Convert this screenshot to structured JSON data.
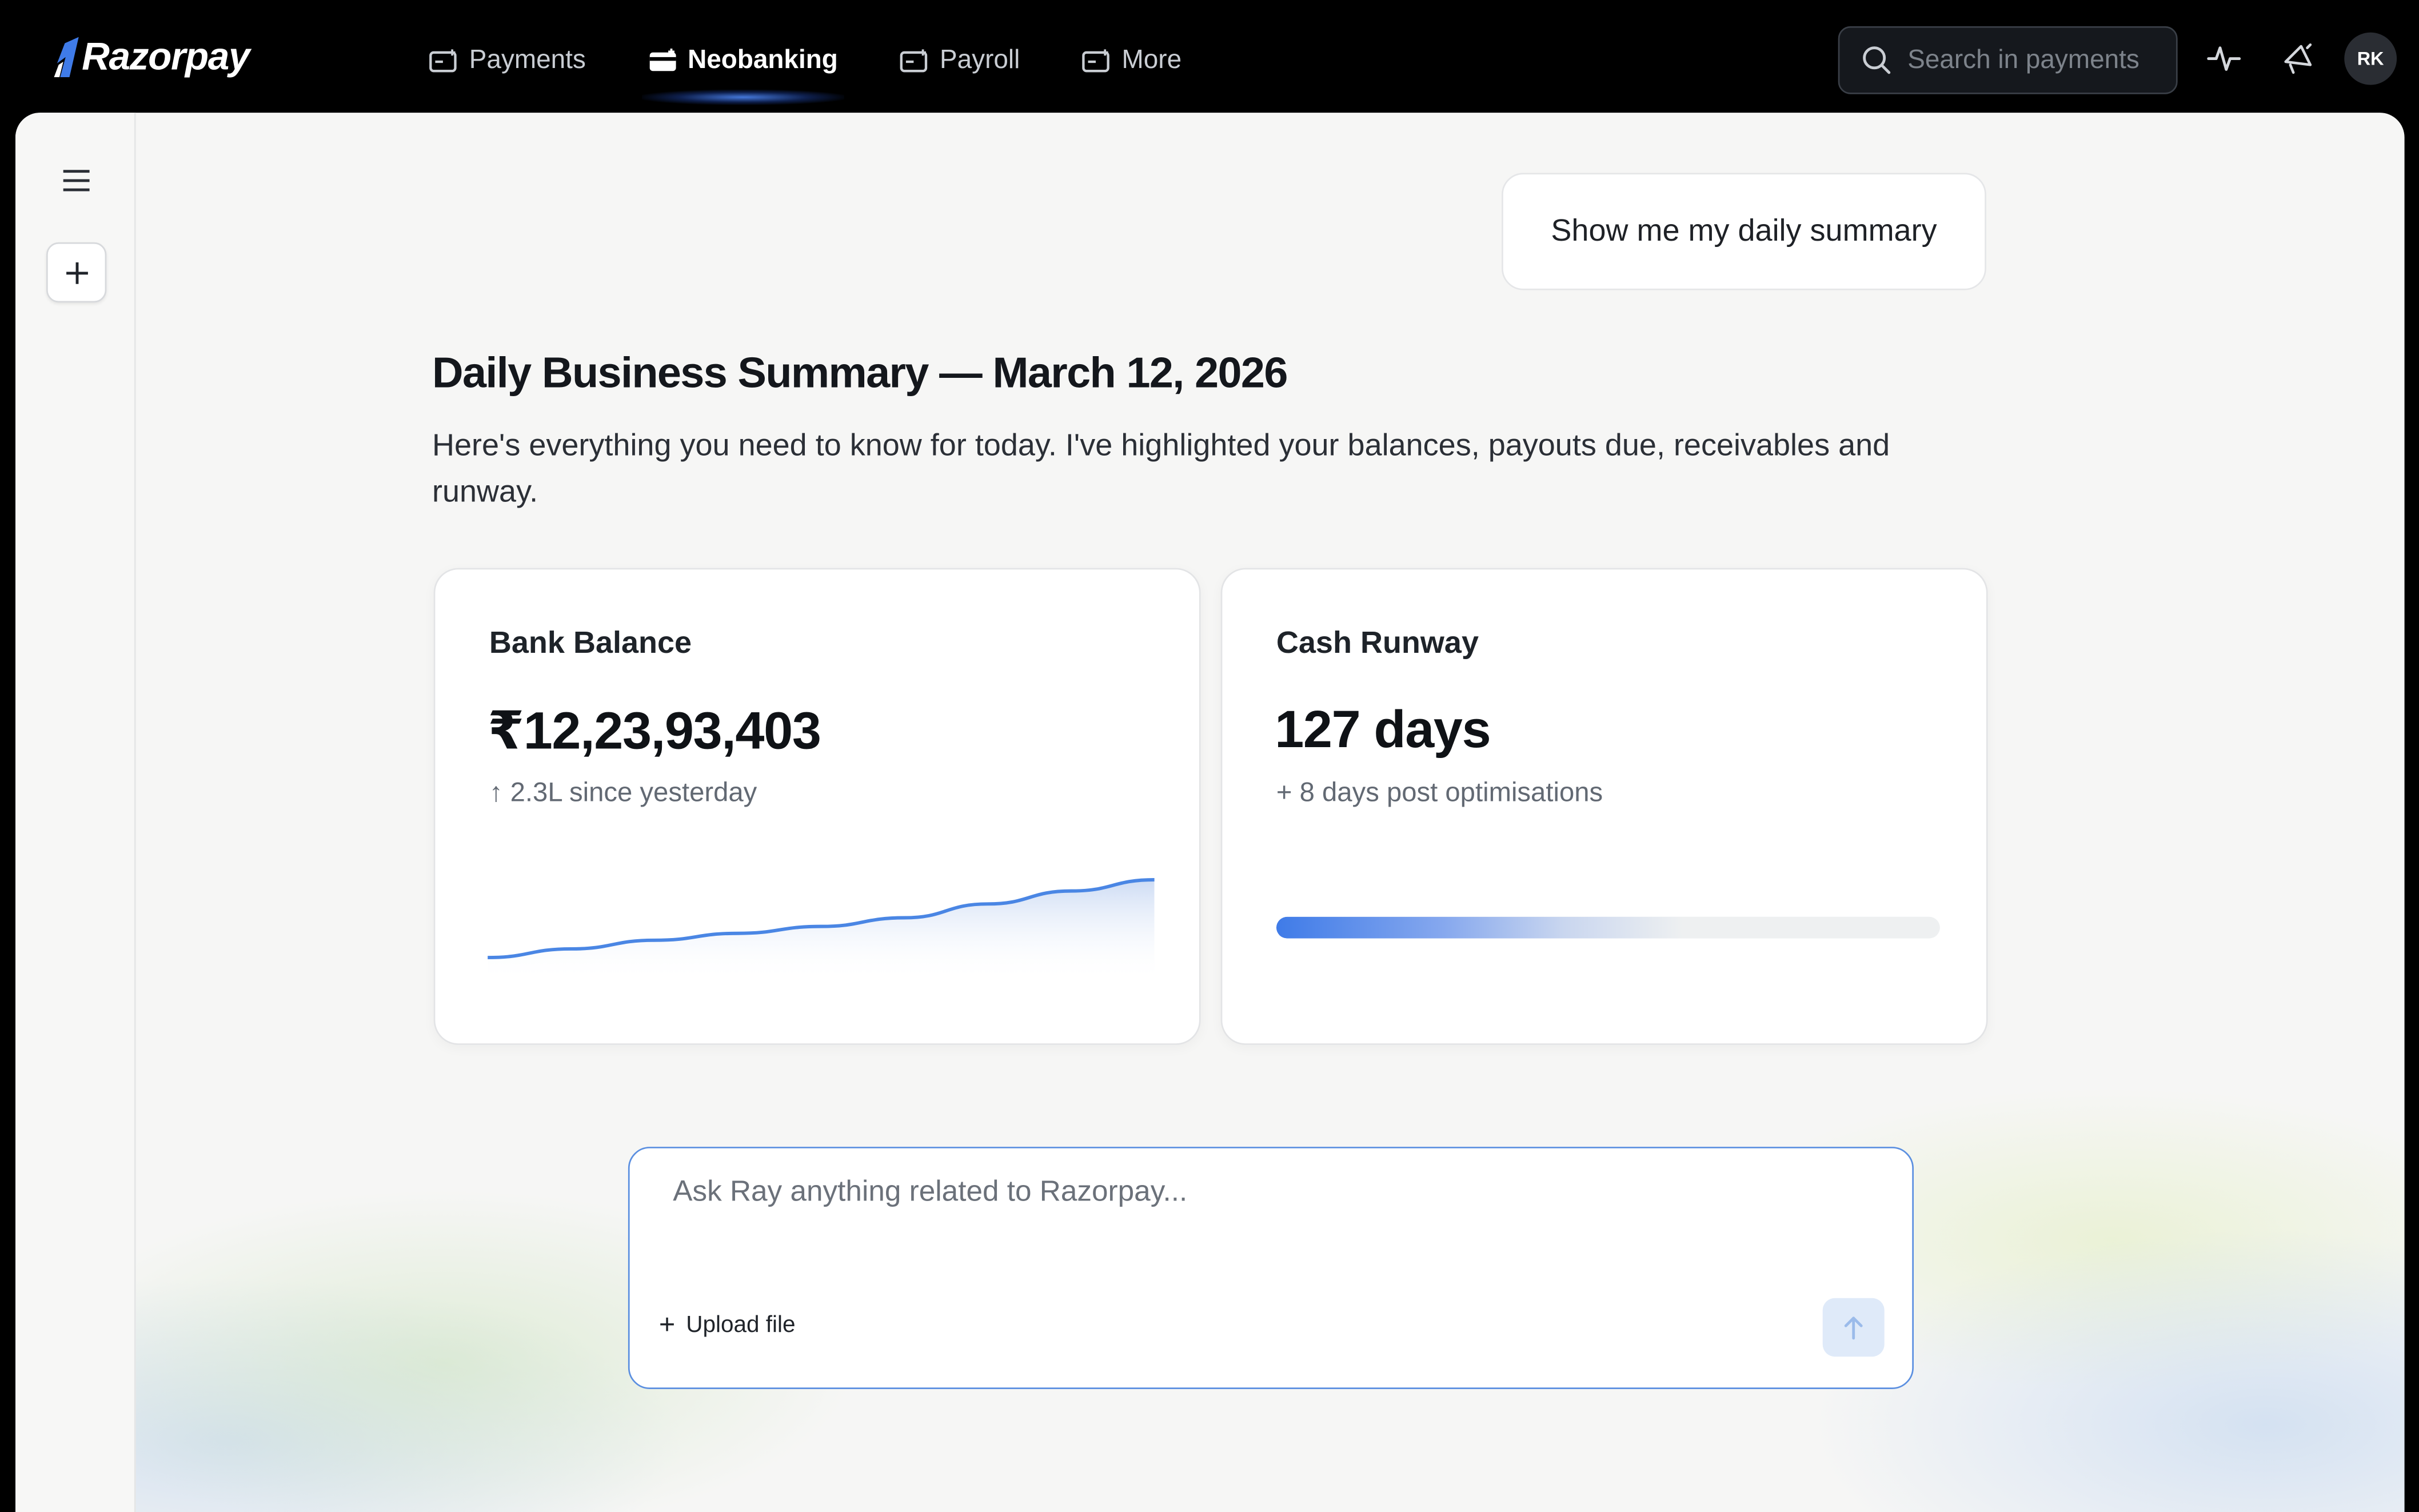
{
  "app": {
    "brand": "Razorpay",
    "accent": "#3f7be8"
  },
  "nav": {
    "items": [
      {
        "label": "Payments",
        "icon": "wallet-icon",
        "active": false
      },
      {
        "label": "Neobanking",
        "icon": "card-icon",
        "active": true
      },
      {
        "label": "Payroll",
        "icon": "wallet-icon",
        "active": false
      },
      {
        "label": "More",
        "icon": "wallet-icon",
        "active": false
      }
    ]
  },
  "search": {
    "placeholder": "Search in payments"
  },
  "user": {
    "initials": "RK"
  },
  "chat": {
    "user_message": "Show me my daily summary",
    "title": "Daily Business Summary — March 12, 2026",
    "subtitle": "Here's everything you need to know for today. I've highlighted your balances, payouts due, receivables and runway."
  },
  "cards": {
    "balance": {
      "label": "Bank Balance",
      "value": "₹12,23,93,403",
      "delta": "↑ 2.3L since yesterday",
      "trend": [
        0.1,
        0.2,
        0.3,
        0.38,
        0.46,
        0.56,
        0.72,
        0.87,
        1.0
      ]
    },
    "runway": {
      "label": "Cash Runway",
      "value": "127 days",
      "delta": "+ 8 days post optimisations",
      "progress": 0.72
    }
  },
  "composer": {
    "placeholder": "Ask Ray anything related to Razorpay...",
    "upload_label": "Upload file"
  }
}
